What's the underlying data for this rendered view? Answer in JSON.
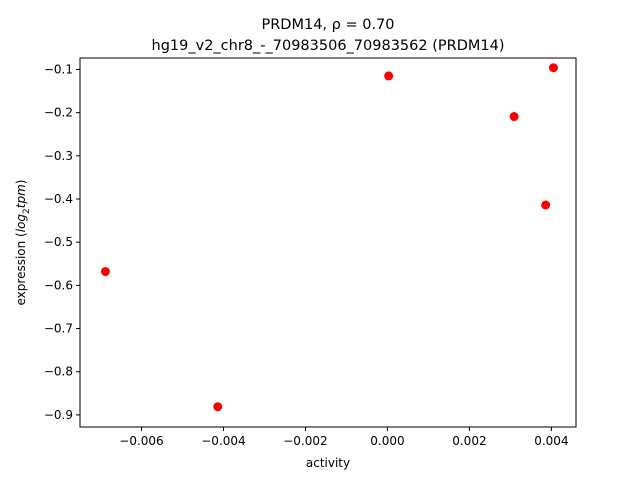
{
  "chart_data": {
    "type": "scatter",
    "title_line1": "PRDM14, ρ = 0.70",
    "title_line2": "hg19_v2_chr8_-_70983506_70983562 (PRDM14)",
    "xlabel": "activity",
    "ylabel_prefix": "expression (",
    "ylabel_math": "log",
    "ylabel_sub": "2",
    "ylabel_math2": "tpm",
    "ylabel_suffix": ")",
    "xlim": [
      -0.0075,
      0.0046
    ],
    "ylim": [
      -0.928,
      -0.0735
    ],
    "xticks": [
      -0.006,
      -0.004,
      -0.002,
      0.0,
      0.002,
      0.004
    ],
    "xtick_labels": [
      "−0.006",
      "−0.004",
      "−0.002",
      "0.000",
      "0.002",
      "0.004"
    ],
    "yticks": [
      -0.1,
      -0.2,
      -0.3,
      -0.4,
      -0.5,
      -0.6,
      -0.7,
      -0.8,
      -0.9
    ],
    "ytick_labels": [
      "−0.1",
      "−0.2",
      "−0.3",
      "−0.4",
      "−0.5",
      "−0.6",
      "−0.7",
      "−0.8",
      "−0.9"
    ],
    "marker_color": "#ff0000",
    "points": [
      {
        "x": -0.00688,
        "y": -0.568
      },
      {
        "x": -0.00414,
        "y": -0.881
      },
      {
        "x": 3e-05,
        "y": -0.115
      },
      {
        "x": 0.00309,
        "y": -0.209
      },
      {
        "x": 0.00386,
        "y": -0.414
      },
      {
        "x": 0.00405,
        "y": -0.096
      }
    ]
  }
}
